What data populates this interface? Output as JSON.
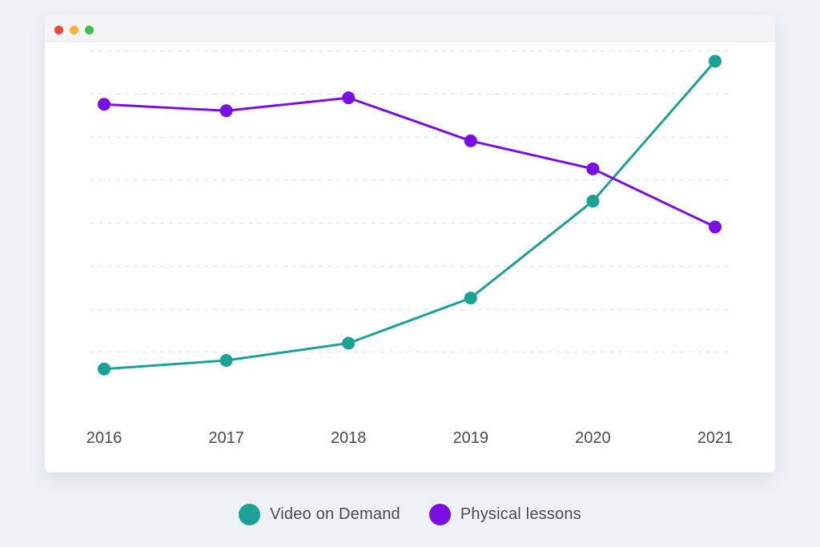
{
  "window": {
    "controls": [
      {
        "name": "close",
        "color": "#f2453d"
      },
      {
        "name": "minimize",
        "color": "#f6b52c"
      },
      {
        "name": "maximize",
        "color": "#3ebf4c"
      }
    ]
  },
  "colors": {
    "grid": "#e7e8ec",
    "tick_text": "#4a4a52"
  },
  "chart_data": {
    "type": "line",
    "categories": [
      "2016",
      "2017",
      "2018",
      "2019",
      "2020",
      "2021"
    ],
    "ylim": [
      0,
      8
    ],
    "grid": "horizontal dashed",
    "legend_position": "bottom-center",
    "xlabel": "",
    "ylabel": "",
    "y_tick_labels": false,
    "series": [
      {
        "name": "Video on Demand",
        "color": "#1ba297",
        "values": [
          0.6,
          0.8,
          1.2,
          2.25,
          4.5,
          7.75
        ]
      },
      {
        "name": "Physical lessons",
        "color": "#7b0fe3",
        "values": [
          6.75,
          6.6,
          6.9,
          5.9,
          5.25,
          3.9
        ]
      }
    ]
  },
  "legend": {
    "items": [
      {
        "label": "Video on Demand",
        "color": "#1ba297"
      },
      {
        "label": "Physical lessons",
        "color": "#7b0fe3"
      }
    ]
  }
}
